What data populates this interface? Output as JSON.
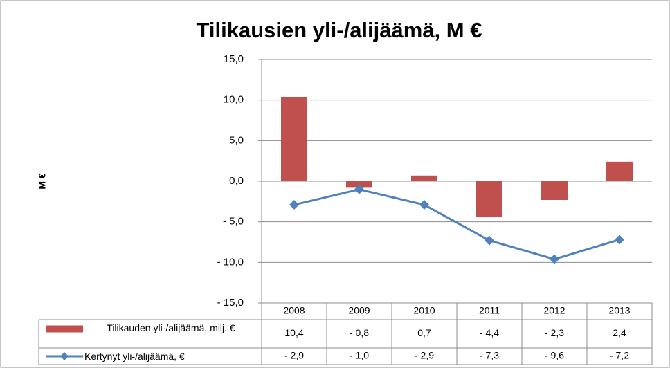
{
  "chart_data": {
    "type": "bar_line_table",
    "title": "Tilikausien yli-/alijäämä, M €",
    "y_label": "M €",
    "categories": [
      "2008",
      "2009",
      "2010",
      "2011",
      "2012",
      "2013"
    ],
    "series": [
      {
        "name": "Tilikauden yli-/alijäämä, milj. €",
        "type": "bar",
        "color": "#c0504d",
        "values": [
          10.4,
          -0.8,
          0.7,
          -4.4,
          -2.3,
          2.4
        ],
        "value_labels": [
          "10,4",
          "- 0,8",
          "0,7",
          "- 4,4",
          "- 2,3",
          "2,4"
        ]
      },
      {
        "name": "Kertynyt yli-/alijäämä, €",
        "type": "line",
        "color": "#4f81bd",
        "values": [
          -2.9,
          -1.0,
          -2.9,
          -7.3,
          -9.6,
          -7.2
        ],
        "value_labels": [
          "- 2,9",
          "- 1,0",
          "- 2,9",
          "- 7,3",
          "- 9,6",
          "- 7,2"
        ]
      }
    ],
    "ylim": [
      -15,
      15
    ],
    "yticks": [
      {
        "value": 15,
        "label": "15,0"
      },
      {
        "value": 10,
        "label": "10,0"
      },
      {
        "value": 5,
        "label": "5,0"
      },
      {
        "value": 0,
        "label": "0,0"
      },
      {
        "value": -5,
        "label": "- 5,0"
      },
      {
        "value": -10,
        "label": "- 10,0"
      },
      {
        "value": -15,
        "label": "- 15,0"
      }
    ],
    "grid": true
  }
}
